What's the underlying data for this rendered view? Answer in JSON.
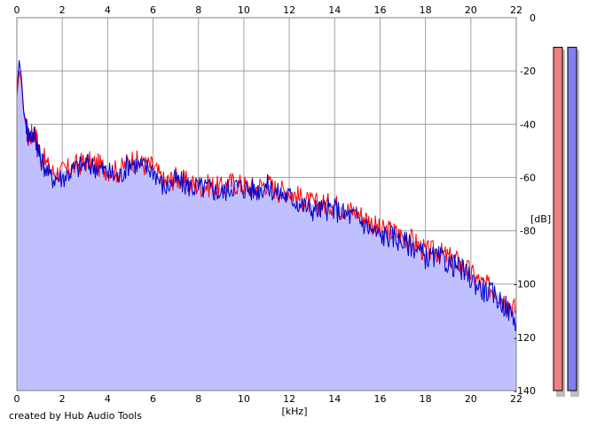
{
  "footer": "created by Hub Audio Tools",
  "colors": {
    "fill": "#c0c0ff",
    "red_channel": "#ff0000",
    "blue_channel": "#0000cc",
    "grid": "#a0a0a0",
    "meter_left": "#f08080",
    "meter_right": "#8080f0"
  },
  "chart_data": {
    "type": "area",
    "xlabel": "[kHz]",
    "ylabel": "[dB]",
    "xlim": [
      0,
      22
    ],
    "ylim": [
      -140,
      0
    ],
    "x_ticks": [
      "0",
      "2",
      "4",
      "6",
      "8",
      "10",
      "12",
      "14",
      "16",
      "18",
      "20",
      "22"
    ],
    "y_ticks": [
      "0",
      "-20",
      "-40",
      "-60",
      "-80",
      "-100",
      "-120",
      "-140"
    ],
    "grid": true,
    "series": [
      {
        "color": "#ff0000",
        "x": [
          0.0,
          0.1,
          0.2,
          0.3,
          0.5,
          0.8,
          1.0,
          1.5,
          2.0,
          2.5,
          3.0,
          3.5,
          4.0,
          4.5,
          5.0,
          5.5,
          6.0,
          6.5,
          7.0,
          7.5,
          8.0,
          8.5,
          9.0,
          9.5,
          10.0,
          10.5,
          11.0,
          11.5,
          12.0,
          12.5,
          13.0,
          13.5,
          14.0,
          14.5,
          15.0,
          15.5,
          16.0,
          16.5,
          17.0,
          17.5,
          18.0,
          18.5,
          19.0,
          19.5,
          20.0,
          20.5,
          21.0,
          21.5,
          22.0
        ],
        "values": [
          -30,
          -20,
          -24,
          -36,
          -45,
          -43,
          -50,
          -58,
          -58,
          -56,
          -54,
          -55,
          -57,
          -58,
          -53,
          -55,
          -56,
          -62,
          -60,
          -62,
          -63,
          -63,
          -64,
          -62,
          -63,
          -64,
          -62,
          -65,
          -65,
          -68,
          -70,
          -70,
          -70,
          -72,
          -73,
          -76,
          -80,
          -80,
          -82,
          -84,
          -88,
          -88,
          -90,
          -92,
          -96,
          -100,
          -102,
          -106,
          -110
        ]
      },
      {
        "color": "#0000cc",
        "x": [
          0.0,
          0.1,
          0.2,
          0.3,
          0.5,
          0.8,
          1.0,
          1.5,
          2.0,
          2.5,
          3.0,
          3.5,
          4.0,
          4.5,
          5.0,
          5.5,
          6.0,
          6.5,
          7.0,
          7.5,
          8.0,
          8.5,
          9.0,
          9.5,
          10.0,
          10.5,
          11.0,
          11.5,
          12.0,
          12.5,
          13.0,
          13.5,
          14.0,
          14.5,
          15.0,
          15.5,
          16.0,
          16.5,
          17.0,
          17.5,
          18.0,
          18.5,
          19.0,
          19.5,
          20.0,
          20.5,
          21.0,
          21.5,
          22.0
        ],
        "values": [
          -28,
          -16,
          -22,
          -35,
          -44,
          -44,
          -52,
          -60,
          -60,
          -57,
          -55,
          -56,
          -58,
          -60,
          -54,
          -56,
          -57,
          -64,
          -61,
          -63,
          -64,
          -64,
          -66,
          -63,
          -64,
          -65,
          -63,
          -66,
          -67,
          -70,
          -72,
          -72,
          -72,
          -74,
          -75,
          -79,
          -82,
          -82,
          -84,
          -86,
          -90,
          -90,
          -92,
          -94,
          -98,
          -102,
          -104,
          -108,
          -114
        ]
      }
    ],
    "level_meters": [
      {
        "channel": "left",
        "level_db": -6
      },
      {
        "channel": "right",
        "level_db": -6
      }
    ]
  }
}
